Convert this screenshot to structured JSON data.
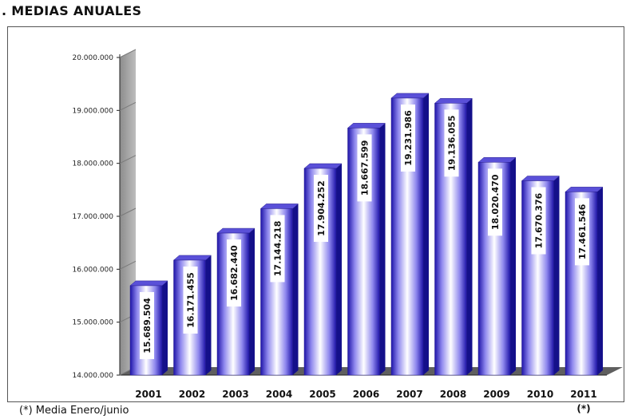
{
  "heading": ". MEDIAS ANUALES",
  "footnote": "(*) Media Enero/junio",
  "chart_data": {
    "type": "bar",
    "title": "",
    "xlabel": "",
    "ylabel": "",
    "categories": [
      "2001",
      "2002",
      "2003",
      "2004",
      "2005",
      "2006",
      "2007",
      "2008",
      "2009",
      "2010",
      "2011"
    ],
    "category_notes": [
      "",
      "",
      "",
      "",
      "",
      "",
      "",
      "",
      "",
      "",
      "(*)"
    ],
    "values": [
      15689504,
      16171455,
      16682440,
      17144218,
      17904252,
      18667599,
      19231986,
      19136055,
      18020470,
      17670376,
      17461546
    ],
    "value_labels": [
      "15.689.504",
      "16.171.455",
      "16.682.440",
      "17.144.218",
      "17.904.252",
      "18.667.599",
      "19.231.986",
      "19.136.055",
      "18.020.470",
      "17.670.376",
      "17.461.546"
    ],
    "ylim": [
      14000000,
      20000000
    ],
    "yticks": [
      14000000,
      15000000,
      16000000,
      17000000,
      18000000,
      19000000,
      20000000
    ],
    "ytick_labels": [
      "14.000.000",
      "15.000.000",
      "16.000.000",
      "17.000.000",
      "18.000.000",
      "19.000.000",
      "20.000.000"
    ],
    "grid": false,
    "legend": "none",
    "colors": {
      "bar_light": "#ffffff",
      "bar_mid": "#8f88ee",
      "bar_dark": "#1e14a8",
      "bar_top": "#5a50d8",
      "bar_side": "#14108a",
      "wall": "#a6a6a6",
      "floor": "#5f5f5f"
    }
  }
}
